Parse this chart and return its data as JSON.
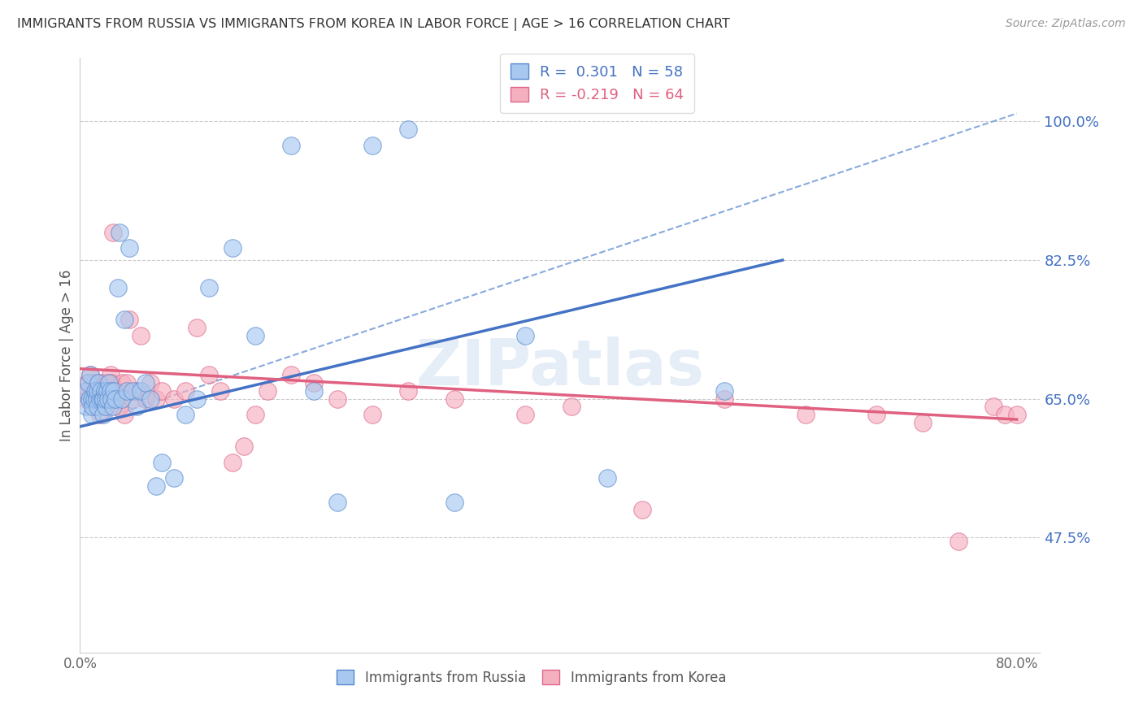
{
  "title": "IMMIGRANTS FROM RUSSIA VS IMMIGRANTS FROM KOREA IN LABOR FORCE | AGE > 16 CORRELATION CHART",
  "source": "Source: ZipAtlas.com",
  "ylabel": "In Labor Force | Age > 16",
  "xlim": [
    0.0,
    0.82
  ],
  "ylim": [
    0.33,
    1.08
  ],
  "y_tick_positions": [
    0.475,
    0.65,
    0.825,
    1.0
  ],
  "y_tick_labels": [
    "47.5%",
    "65.0%",
    "82.5%",
    "100.0%"
  ],
  "x_tick_positions": [
    0.0,
    0.8
  ],
  "x_tick_labels": [
    "0.0%",
    "80.0%"
  ],
  "color_russia_fill": "#a8c8f0",
  "color_russia_edge": "#5588cc",
  "color_russia_line": "#4472c4",
  "color_korea_fill": "#f5b0c0",
  "color_korea_edge": "#dd6688",
  "color_korea_line": "#e06080",
  "color_dashed": "#88aadd",
  "color_grid": "#cccccc",
  "legend_russia": "R =  0.301   N = 58",
  "legend_korea": "R = -0.219   N = 64",
  "russia_line_x": [
    0.0,
    0.6
  ],
  "russia_line_y": [
    0.615,
    0.825
  ],
  "korea_line_x": [
    0.0,
    0.8
  ],
  "korea_line_y": [
    0.688,
    0.624
  ],
  "dashed_line_x": [
    0.0,
    0.8
  ],
  "dashed_line_y": [
    0.615,
    1.01
  ],
  "russia_x": [
    0.005,
    0.005,
    0.007,
    0.008,
    0.009,
    0.01,
    0.01,
    0.011,
    0.012,
    0.013,
    0.014,
    0.015,
    0.015,
    0.016,
    0.017,
    0.018,
    0.019,
    0.02,
    0.02,
    0.021,
    0.022,
    0.022,
    0.023,
    0.024,
    0.025,
    0.026,
    0.027,
    0.028,
    0.029,
    0.03,
    0.032,
    0.034,
    0.036,
    0.038,
    0.04,
    0.042,
    0.045,
    0.048,
    0.052,
    0.056,
    0.06,
    0.065,
    0.07,
    0.08,
    0.09,
    0.1,
    0.11,
    0.13,
    0.15,
    0.18,
    0.2,
    0.22,
    0.25,
    0.28,
    0.32,
    0.38,
    0.45,
    0.55
  ],
  "russia_y": [
    0.66,
    0.64,
    0.67,
    0.65,
    0.68,
    0.65,
    0.63,
    0.64,
    0.65,
    0.66,
    0.65,
    0.66,
    0.64,
    0.67,
    0.65,
    0.66,
    0.65,
    0.65,
    0.63,
    0.66,
    0.64,
    0.65,
    0.66,
    0.65,
    0.67,
    0.66,
    0.65,
    0.64,
    0.66,
    0.65,
    0.79,
    0.86,
    0.65,
    0.75,
    0.66,
    0.84,
    0.66,
    0.64,
    0.66,
    0.67,
    0.65,
    0.54,
    0.57,
    0.55,
    0.63,
    0.65,
    0.79,
    0.84,
    0.73,
    0.97,
    0.66,
    0.52,
    0.97,
    0.99,
    0.52,
    0.73,
    0.55,
    0.66
  ],
  "korea_x": [
    0.005,
    0.006,
    0.007,
    0.008,
    0.009,
    0.01,
    0.011,
    0.012,
    0.013,
    0.014,
    0.015,
    0.016,
    0.017,
    0.018,
    0.019,
    0.02,
    0.021,
    0.022,
    0.023,
    0.024,
    0.025,
    0.026,
    0.027,
    0.028,
    0.03,
    0.032,
    0.034,
    0.036,
    0.038,
    0.04,
    0.042,
    0.045,
    0.048,
    0.052,
    0.056,
    0.06,
    0.065,
    0.07,
    0.08,
    0.09,
    0.1,
    0.11,
    0.12,
    0.13,
    0.14,
    0.15,
    0.16,
    0.18,
    0.2,
    0.22,
    0.25,
    0.28,
    0.32,
    0.38,
    0.42,
    0.48,
    0.55,
    0.62,
    0.68,
    0.72,
    0.75,
    0.78,
    0.79,
    0.8
  ],
  "korea_y": [
    0.65,
    0.67,
    0.66,
    0.65,
    0.68,
    0.65,
    0.64,
    0.67,
    0.66,
    0.65,
    0.66,
    0.67,
    0.63,
    0.65,
    0.67,
    0.65,
    0.66,
    0.64,
    0.67,
    0.65,
    0.67,
    0.68,
    0.67,
    0.86,
    0.65,
    0.66,
    0.64,
    0.67,
    0.63,
    0.67,
    0.75,
    0.65,
    0.66,
    0.73,
    0.65,
    0.67,
    0.65,
    0.66,
    0.65,
    0.66,
    0.74,
    0.68,
    0.66,
    0.57,
    0.59,
    0.63,
    0.66,
    0.68,
    0.67,
    0.65,
    0.63,
    0.66,
    0.65,
    0.63,
    0.64,
    0.51,
    0.65,
    0.63,
    0.63,
    0.62,
    0.47,
    0.64,
    0.63,
    0.63
  ]
}
